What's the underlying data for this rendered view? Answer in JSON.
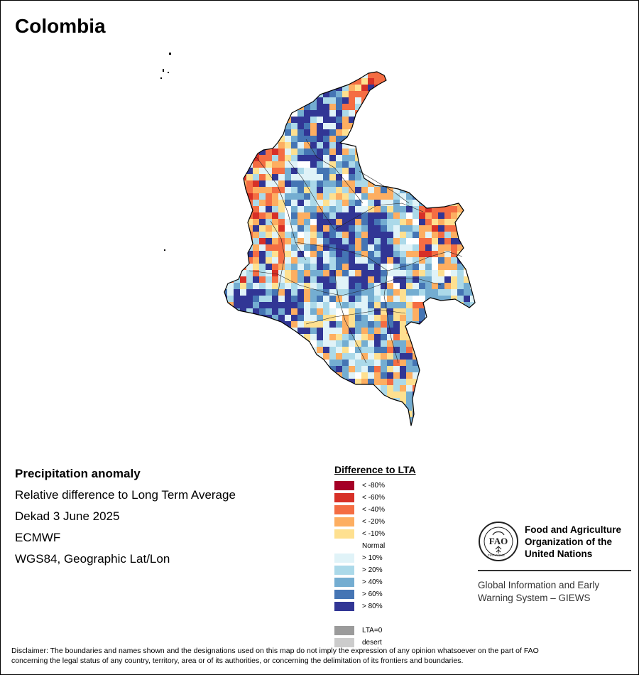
{
  "title": "Colombia",
  "info": {
    "heading": "Precipitation anomaly",
    "lines": [
      "Relative difference to Long Term Average",
      "Dekad 3 June 2025",
      "ECMWF",
      "WGS84, Geographic Lat/Lon"
    ]
  },
  "legend": {
    "title": "Difference to LTA",
    "items": [
      {
        "label": "< -80%",
        "color": "#a50026"
      },
      {
        "label": "< -60%",
        "color": "#d73027"
      },
      {
        "label": "< -40%",
        "color": "#f46d43"
      },
      {
        "label": "< -20%",
        "color": "#fdae61"
      },
      {
        "label": "< -10%",
        "color": "#fee090"
      },
      {
        "label": "Normal",
        "color": "#ffffff"
      },
      {
        "label": "> 10%",
        "color": "#e0f3f8"
      },
      {
        "label": "> 20%",
        "color": "#abd9e9"
      },
      {
        "label": "> 40%",
        "color": "#74add1"
      },
      {
        "label": "> 60%",
        "color": "#4575b4"
      },
      {
        "label": "> 80%",
        "color": "#313695"
      },
      {
        "label": "",
        "color": "#ffffff"
      },
      {
        "label": "LTA=0",
        "color": "#9b9b9b"
      },
      {
        "label": "desert",
        "color": "#cccccc"
      }
    ]
  },
  "fao": {
    "emblem_text": "FAO",
    "emblem_motto": "FIAT PANIS",
    "name_lines": [
      "Food and Agriculture",
      "Organization of the",
      "United Nations"
    ],
    "giews_lines": [
      "Global Information and Early",
      "Warning System – GIEWS"
    ]
  },
  "disclaimer_lines": [
    "Disclaimer: The boundaries and names shown and the designations used on this map do not imply the expression of any opinion whatsoever on the part of FAO",
    "concerning the legal status of any country, territory, area or of its authorities, or concerning the delimitation of its frontiers and boundaries."
  ],
  "colors": {
    "border": "#000000",
    "map_fill": "#ffffff"
  }
}
